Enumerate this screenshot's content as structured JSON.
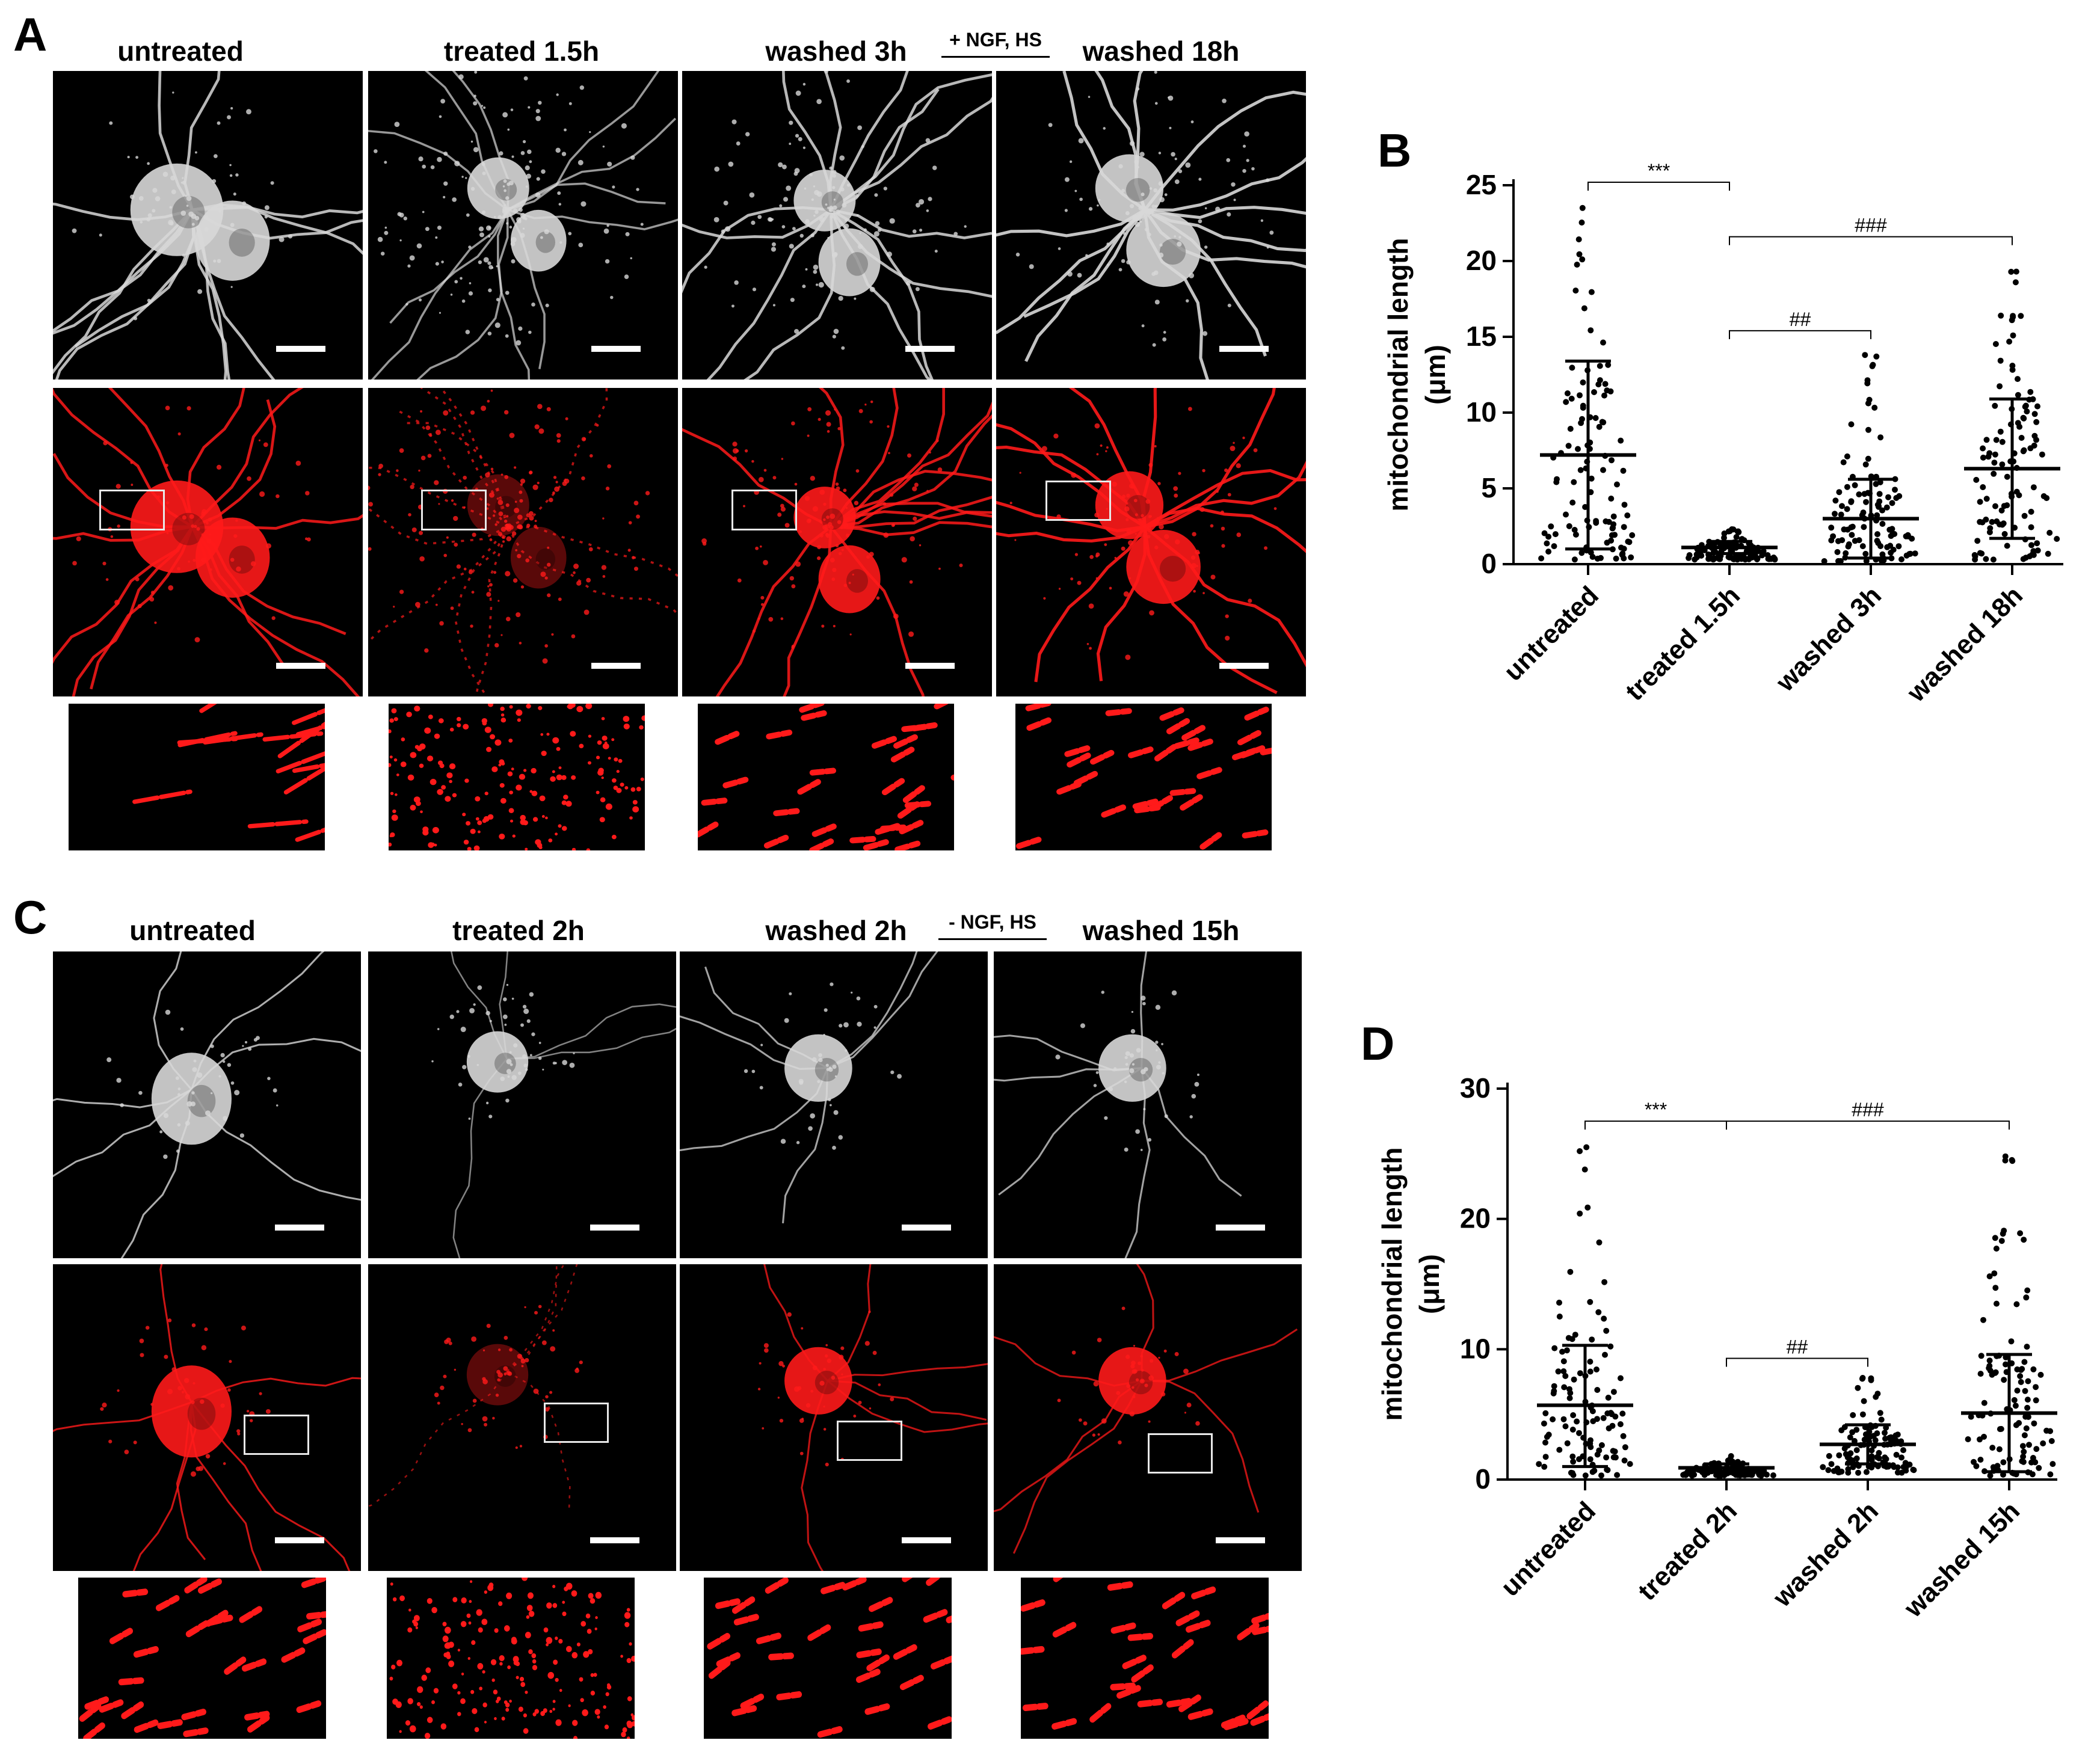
{
  "figure": {
    "panel_a": {
      "letter": "A",
      "condition_note": "+ NGF, HS",
      "columns": [
        "untreated",
        "treated 1.5h",
        "washed 3h",
        "washed 18h"
      ]
    },
    "panel_b": {
      "letter": "B"
    },
    "panel_c": {
      "letter": "C",
      "condition_note": "- NGF, HS",
      "columns": [
        "untreated",
        "treated 2h",
        "washed 2h",
        "washed 15h"
      ]
    },
    "panel_d": {
      "letter": "D"
    }
  },
  "chart_data": [
    {
      "panel": "B",
      "type": "scatter",
      "ylabel_line1": "mitochondrial length",
      "ylabel_line2": "(μm)",
      "ylim": [
        0,
        25
      ],
      "yticks": [
        0,
        5,
        10,
        15,
        20,
        25
      ],
      "categories": [
        "untreated",
        "treated 1.5h",
        "washed 3h",
        "washed 18h"
      ],
      "groups": [
        {
          "category": "untreated",
          "mean": 7.2,
          "sd_low": 1.0,
          "sd_high": 13.4,
          "min": 0.3,
          "max": 23.5
        },
        {
          "category": "treated 1.5h",
          "mean": 1.1,
          "sd_low": 0.7,
          "sd_high": 1.5,
          "min": 0.3,
          "max": 2.3
        },
        {
          "category": "washed 3h",
          "mean": 3.0,
          "sd_low": 0.4,
          "sd_high": 5.6,
          "min": 0.2,
          "max": 13.8
        },
        {
          "category": "washed 18h",
          "mean": 6.3,
          "sd_low": 1.7,
          "sd_high": 10.9,
          "min": 0.3,
          "max": 19.3
        }
      ],
      "significance": [
        {
          "from": "untreated",
          "to": "treated 1.5h",
          "label": "***",
          "y": 25.2
        },
        {
          "from": "treated 1.5h",
          "to": "washed 18h",
          "label": "###",
          "y": 21.6
        },
        {
          "from": "treated 1.5h",
          "to": "washed 3h",
          "label": "##",
          "y": 15.4
        }
      ]
    },
    {
      "panel": "D",
      "type": "scatter",
      "ylabel_line1": "mitochondrial length",
      "ylabel_line2": "(μm)",
      "ylim": [
        0,
        30
      ],
      "yticks": [
        0,
        10,
        20,
        30
      ],
      "categories": [
        "untreated",
        "treated 2h",
        "washed 2h",
        "washed 15h"
      ],
      "groups": [
        {
          "category": "untreated",
          "mean": 5.7,
          "sd_low": 1.0,
          "sd_high": 10.3,
          "min": 0.3,
          "max": 25.5
        },
        {
          "category": "treated 2h",
          "mean": 0.9,
          "sd_low": 0.6,
          "sd_high": 1.2,
          "min": 0.3,
          "max": 1.8
        },
        {
          "category": "washed 2h",
          "mean": 2.7,
          "sd_low": 1.2,
          "sd_high": 4.2,
          "min": 0.5,
          "max": 7.8
        },
        {
          "category": "washed 15h",
          "mean": 5.1,
          "sd_low": 0.6,
          "sd_high": 9.6,
          "min": 0.3,
          "max": 24.8
        }
      ],
      "significance": [
        {
          "from": "untreated",
          "to": "treated 2h",
          "label": "***",
          "y": 27.5
        },
        {
          "from": "treated 2h",
          "to": "washed 15h",
          "label": "###",
          "y": 27.5
        },
        {
          "from": "treated 2h",
          "to": "washed 2h",
          "label": "##",
          "y": 9.3
        }
      ]
    }
  ],
  "colors": {
    "mito_red": "#ff1a1a",
    "gray_signal": "#d8d8d8",
    "background": "#000000"
  }
}
